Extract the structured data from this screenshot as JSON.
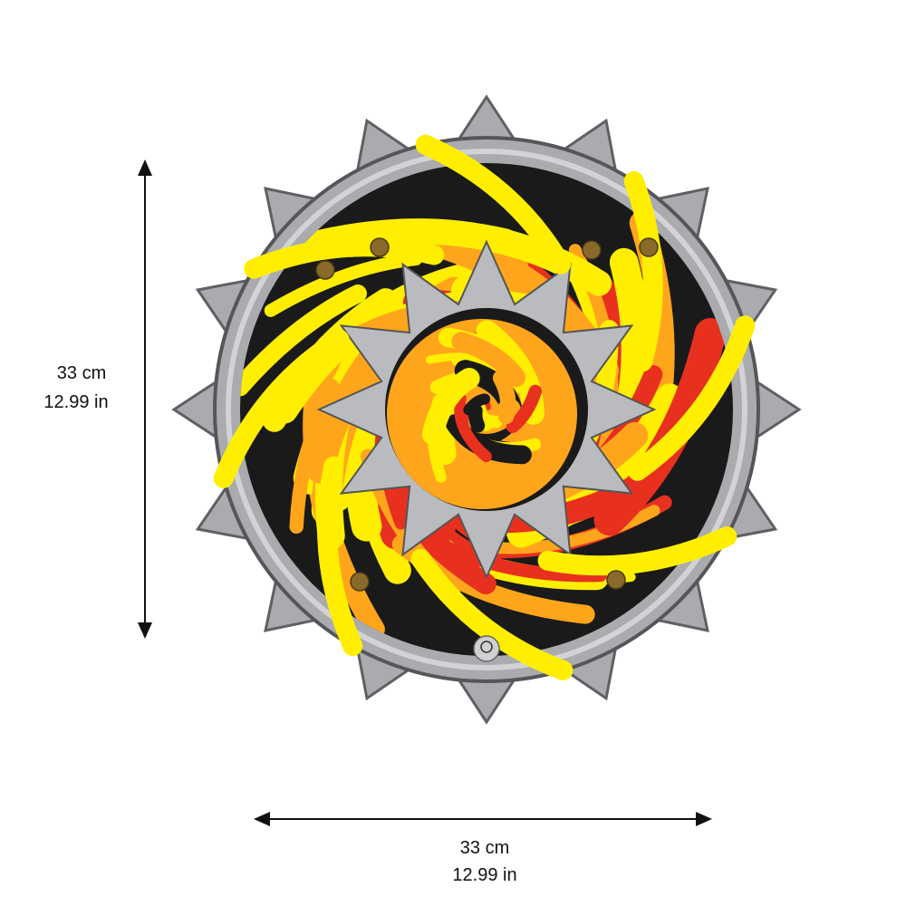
{
  "height_dimension": {
    "metric": "33 cm",
    "imperial": "12.99 in"
  },
  "width_dimension": {
    "metric": "33 cm",
    "imperial": "12.99 in"
  },
  "product": {
    "type": "shield",
    "colors": {
      "rim": "#a9abae",
      "rim_edge": "#5f6064",
      "dark": "#1a1a1a",
      "yellow": "#ffee00",
      "orange": "#ffa51c",
      "red": "#e8301f",
      "rivet": "#8a6a2a"
    }
  }
}
